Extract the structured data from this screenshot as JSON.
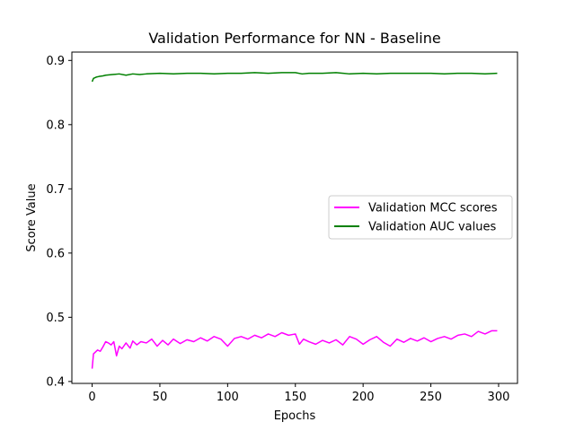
{
  "chart_data": {
    "type": "line",
    "title": "Validation Performance for NN - Baseline",
    "xlabel": "Epochs",
    "ylabel": "Score Value",
    "xlim": [
      -14.95,
      313.95
    ],
    "ylim": [
      0.397,
      0.913
    ],
    "xticks": [
      0,
      50,
      100,
      150,
      200,
      250,
      300
    ],
    "yticks": [
      0.4,
      0.5,
      0.6,
      0.7,
      0.8,
      0.9
    ],
    "ytick_labels": [
      "0.4",
      "0.5",
      "0.6",
      "0.7",
      "0.8",
      "0.9"
    ],
    "legend_location": "center right",
    "grid": false,
    "series": [
      {
        "name": "Validation MCC scores",
        "color": "#ff00ff",
        "x": [
          0,
          1,
          2,
          4,
          6,
          8,
          10,
          12,
          14,
          16,
          18,
          20,
          22,
          25,
          28,
          30,
          33,
          36,
          40,
          44,
          48,
          52,
          56,
          60,
          65,
          70,
          75,
          80,
          85,
          90,
          95,
          100,
          105,
          110,
          115,
          120,
          125,
          130,
          135,
          140,
          145,
          150,
          153,
          156,
          160,
          165,
          170,
          175,
          180,
          185,
          190,
          195,
          200,
          205,
          210,
          215,
          220,
          225,
          230,
          235,
          240,
          245,
          250,
          255,
          260,
          265,
          270,
          275,
          280,
          285,
          290,
          295,
          299
        ],
        "y": [
          0.42,
          0.443,
          0.445,
          0.449,
          0.447,
          0.454,
          0.462,
          0.46,
          0.457,
          0.462,
          0.44,
          0.455,
          0.451,
          0.46,
          0.452,
          0.463,
          0.457,
          0.462,
          0.46,
          0.466,
          0.455,
          0.464,
          0.457,
          0.466,
          0.459,
          0.465,
          0.462,
          0.468,
          0.463,
          0.47,
          0.466,
          0.455,
          0.467,
          0.47,
          0.466,
          0.472,
          0.468,
          0.474,
          0.47,
          0.476,
          0.472,
          0.474,
          0.458,
          0.466,
          0.462,
          0.458,
          0.464,
          0.46,
          0.465,
          0.457,
          0.47,
          0.466,
          0.458,
          0.465,
          0.47,
          0.461,
          0.455,
          0.466,
          0.461,
          0.467,
          0.463,
          0.468,
          0.462,
          0.467,
          0.47,
          0.466,
          0.472,
          0.474,
          0.47,
          0.478,
          0.474,
          0.479,
          0.479
        ]
      },
      {
        "name": "Validation AUC values",
        "color": "#008000",
        "x": [
          0,
          1,
          3,
          5,
          8,
          10,
          15,
          20,
          25,
          30,
          35,
          40,
          50,
          60,
          70,
          80,
          90,
          100,
          110,
          120,
          130,
          140,
          150,
          155,
          160,
          170,
          180,
          190,
          200,
          210,
          220,
          230,
          240,
          250,
          260,
          270,
          280,
          290,
          299
        ],
        "y": [
          0.867,
          0.872,
          0.874,
          0.875,
          0.876,
          0.877,
          0.878,
          0.879,
          0.877,
          0.879,
          0.878,
          0.879,
          0.88,
          0.879,
          0.88,
          0.88,
          0.879,
          0.88,
          0.88,
          0.881,
          0.88,
          0.881,
          0.881,
          0.879,
          0.88,
          0.88,
          0.881,
          0.879,
          0.88,
          0.879,
          0.88,
          0.88,
          0.88,
          0.88,
          0.879,
          0.88,
          0.88,
          0.879,
          0.88
        ]
      }
    ]
  }
}
